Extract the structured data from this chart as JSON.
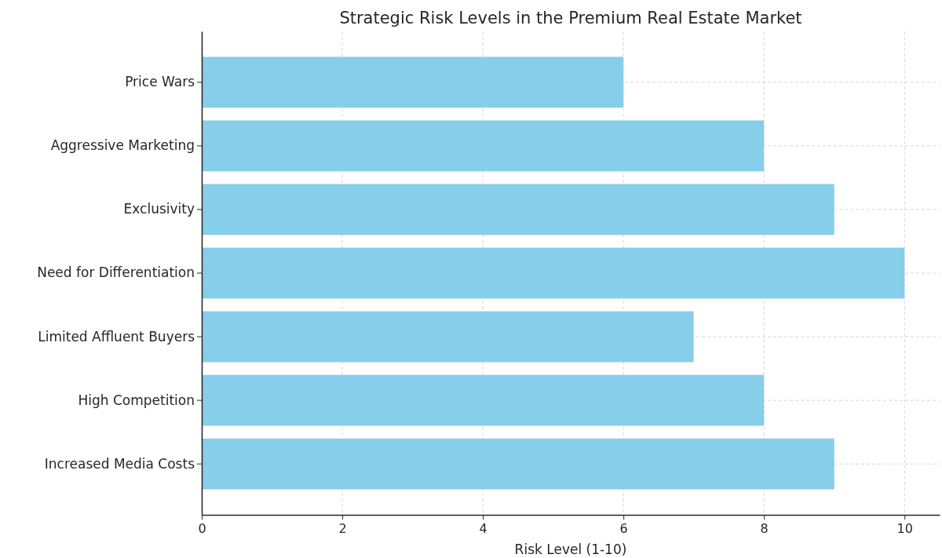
{
  "chart_data": {
    "type": "bar",
    "orientation": "horizontal",
    "title": "Strategic Risk Levels in the Premium Real Estate Market",
    "xlabel": "Risk Level (1-10)",
    "categories": [
      "Price Wars",
      "Aggressive Marketing",
      "Exclusivity",
      "Need for Differentiation",
      "Limited Affluent Buyers",
      "High Competition",
      "Increased Media Costs"
    ],
    "values": [
      6,
      8,
      9,
      10,
      7,
      8,
      9
    ],
    "color": "#87ceeb",
    "xlim": [
      0,
      10.5
    ],
    "xticks": [
      0,
      2,
      4,
      6,
      8,
      10
    ],
    "grid": true
  }
}
